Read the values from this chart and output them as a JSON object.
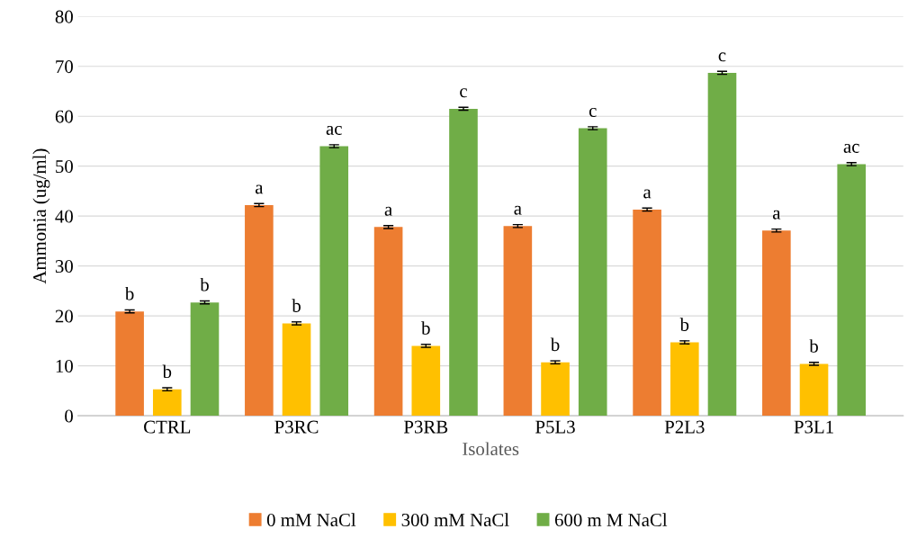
{
  "chart_data": {
    "type": "bar",
    "xlabel": "Isolates",
    "ylabel": "Ammonia (ug/ml)",
    "categories": [
      "CTRL",
      "P3RC",
      "P3RB",
      "P5L3",
      "P2L3",
      "P3L1"
    ],
    "series": [
      {
        "name": "0 mM NaCl",
        "color": "#ed7d31",
        "values": [
          20.9,
          42.2,
          37.8,
          38.0,
          41.3,
          37.1
        ],
        "errors": [
          0.3,
          0.3,
          0.3,
          0.3,
          0.3,
          0.3
        ],
        "value_labels": [
          "b",
          "a",
          "a",
          "a",
          "a",
          "a"
        ]
      },
      {
        "name": "300 mM NaCl",
        "color": "#ffc000",
        "values": [
          5.3,
          18.5,
          14.0,
          10.7,
          14.7,
          10.4
        ],
        "errors": [
          0.3,
          0.3,
          0.3,
          0.3,
          0.3,
          0.3
        ],
        "value_labels": [
          "b",
          "b",
          "b",
          "b",
          "b",
          "b"
        ]
      },
      {
        "name": "600 m M NaCl",
        "color": "#70ad47",
        "values": [
          22.7,
          54.0,
          61.5,
          57.6,
          68.7,
          50.4
        ],
        "errors": [
          0.3,
          0.3,
          0.3,
          0.3,
          0.3,
          0.3
        ],
        "value_labels": [
          "b",
          "ac",
          "c",
          "c",
          "c",
          "ac"
        ]
      }
    ],
    "ylim": [
      0,
      80
    ],
    "yticks": [
      0,
      10,
      20,
      30,
      40,
      50,
      60,
      70,
      80
    ],
    "grid": "y",
    "legend": "bottom"
  }
}
